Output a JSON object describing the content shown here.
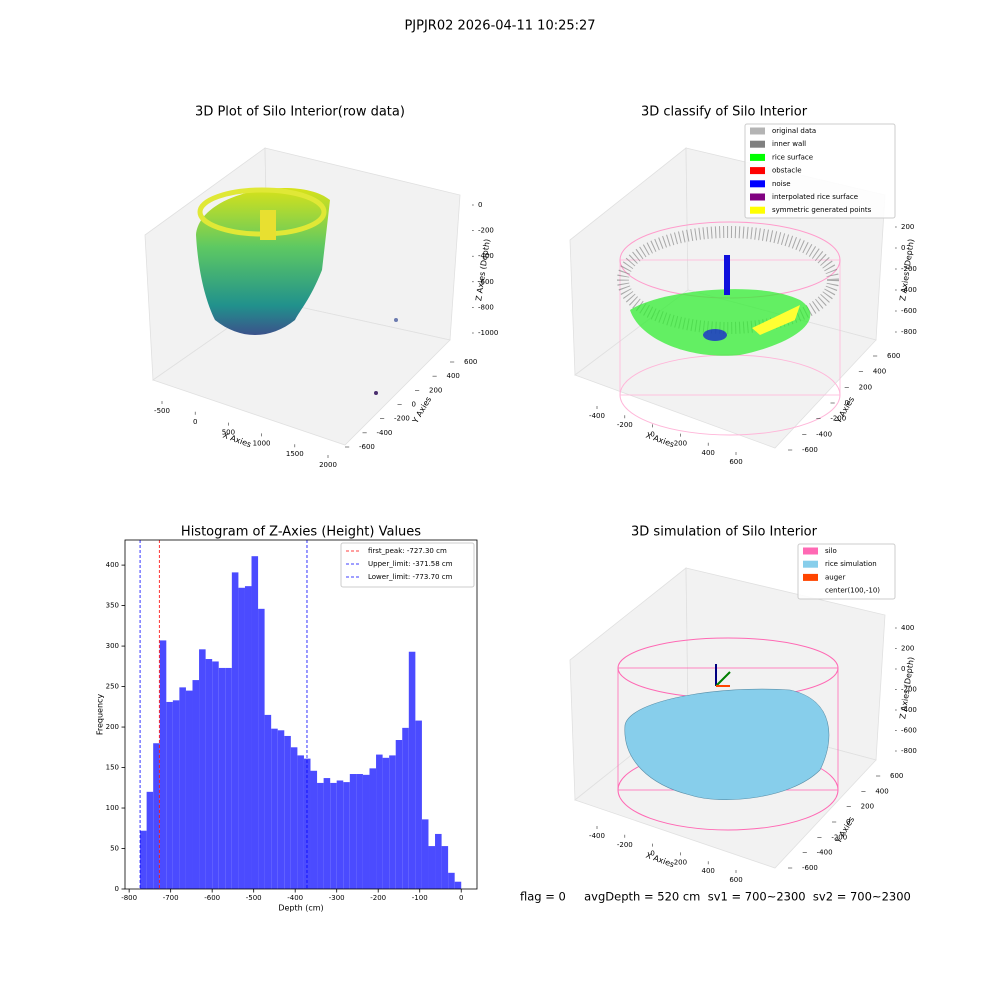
{
  "title": "PJPJR02 2026-04-11 10:25:27",
  "footer": "flag = 0     avgDepth = 520 cm  sv1 = 700~2300  sv2 = 700~2300",
  "chart_data": [
    {
      "type": "scatter3d",
      "title": "3D Plot of Silo Interior(row data)",
      "xlabel": "X Axies",
      "ylabel": "Y Axies",
      "zlabel": "Z Axies (Depth)",
      "xlim": [
        -500,
        2000
      ],
      "xticks": [
        -500,
        0,
        500,
        1000,
        1500,
        2000
      ],
      "ylim": [
        -600,
        600
      ],
      "yticks": [
        -600,
        -400,
        -200,
        0,
        200,
        400,
        600
      ],
      "zlim": [
        -1000,
        0
      ],
      "zticks": [
        0,
        -200,
        -400,
        -600,
        -800,
        -1000
      ]
    },
    {
      "type": "scatter3d",
      "title": "3D classify of Silo Interior",
      "xlabel": "X Axies",
      "ylabel": "Y Axies",
      "zlabel": "Z Axies (Depth)",
      "xlim": [
        -400,
        600
      ],
      "xticks": [
        -400,
        -200,
        0,
        200,
        400,
        600
      ],
      "ylim": [
        -600,
        600
      ],
      "yticks": [
        -600,
        -400,
        -200,
        0,
        200,
        400,
        600
      ],
      "zlim": [
        -800,
        200
      ],
      "zticks": [
        200,
        0,
        -200,
        -400,
        -600,
        -800
      ],
      "legend": [
        {
          "name": "original data",
          "color": "#b4b4b4"
        },
        {
          "name": "inner wall",
          "color": "#808080"
        },
        {
          "name": "rice surface",
          "color": "#00ff00"
        },
        {
          "name": "obstacle",
          "color": "#ff0000"
        },
        {
          "name": "noise",
          "color": "#0000ff"
        },
        {
          "name": "interpolated rice surface",
          "color": "#800080"
        },
        {
          "name": "symmetric generated points",
          "color": "#ffff00"
        }
      ]
    },
    {
      "type": "histogram",
      "title": "Histogram of Z-Axies (Height) Values",
      "xlabel": "Depth (cm)",
      "ylabel": "Frequency",
      "color": "#4b4bff",
      "bins": [
        -773.7,
        -757.9,
        -742.1,
        -726.3,
        -710.5,
        -694.7,
        -679.0,
        -663.2,
        -647.4,
        -631.6,
        -615.8,
        -600.0,
        -584.2,
        -568.4,
        -552.6,
        -536.8,
        -521.0,
        -505.2,
        -489.4,
        -473.7,
        -457.9,
        -442.1,
        -426.3,
        -410.5,
        -394.7,
        -378.9,
        -363.1,
        -347.3,
        -331.5,
        -315.7,
        -300.0,
        -284.2,
        -268.4,
        -252.6,
        -236.8,
        -221.0,
        -205.2,
        -189.4,
        -173.6,
        -157.8,
        -142.1,
        -126.3,
        -110.5,
        -94.7,
        -78.9,
        -63.1,
        -47.3,
        -31.6,
        -15.8,
        0
      ],
      "values": [
        72,
        120,
        180,
        307,
        231,
        233,
        249,
        245,
        258,
        296,
        284,
        281,
        273,
        273,
        391,
        372,
        374,
        411,
        346,
        215,
        198,
        196,
        189,
        175,
        165,
        161,
        146,
        131,
        137,
        131,
        134,
        132,
        142,
        142,
        141,
        149,
        166,
        162,
        165,
        184,
        199,
        293,
        208,
        86,
        53,
        68,
        53,
        20,
        9
      ],
      "xlim": [
        -810,
        38
      ],
      "xticks": [
        -800,
        -700,
        -600,
        -500,
        -400,
        -300,
        -200,
        -100,
        0
      ],
      "ylim": [
        0,
        431
      ],
      "yticks": [
        0,
        50,
        100,
        150,
        200,
        250,
        300,
        350,
        400
      ],
      "lines": [
        {
          "name": "first_peak: -727.30 cm",
          "value": -727.3,
          "color": "#ff0000"
        },
        {
          "name": "Upper_limit: -371.58 cm",
          "value": -371.58,
          "color": "#0000ff"
        },
        {
          "name": "Lower_limit: -773.70 cm",
          "value": -773.7,
          "color": "#0000ff"
        }
      ],
      "legend_position": "upper right"
    },
    {
      "type": "surface3d",
      "title": "3D simulation of Silo Interior",
      "xlabel": "X Axies",
      "ylabel": "Y Axies",
      "zlabel": "Z Axies (Depth)",
      "xlim": [
        -400,
        600
      ],
      "xticks": [
        -400,
        -200,
        0,
        200,
        400,
        600
      ],
      "ylim": [
        -600,
        600
      ],
      "yticks": [
        -600,
        -400,
        -200,
        0,
        200,
        400,
        600
      ],
      "zlim": [
        -800,
        400
      ],
      "zticks": [
        400,
        200,
        0,
        -200,
        -400,
        -600,
        -800
      ],
      "legend": [
        {
          "name": "silo",
          "color": "#ff69b4"
        },
        {
          "name": "rice simulation",
          "color": "#87ceeb"
        },
        {
          "name": "auger",
          "color": "#ff4500"
        },
        {
          "name": "center(100,-10)",
          "color": null
        }
      ]
    }
  ]
}
